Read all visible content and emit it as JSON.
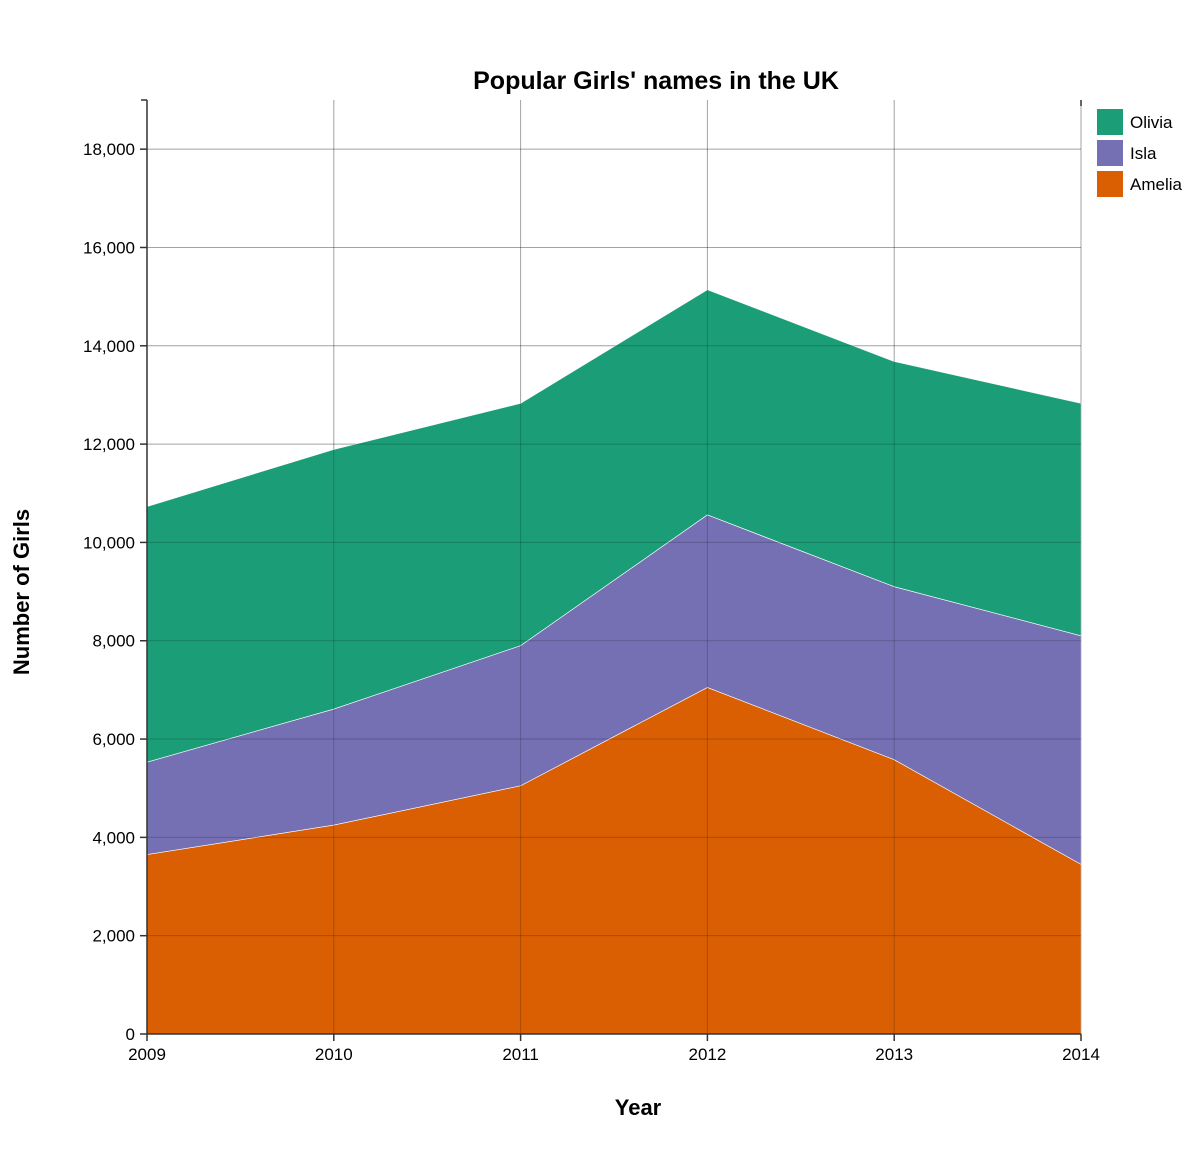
{
  "chart_data": {
    "type": "area",
    "stacked": true,
    "title": "Popular Girls' names in the UK",
    "xlabel": "Year",
    "ylabel": "Number of Girls",
    "x": [
      "2009",
      "2010",
      "2011",
      "2012",
      "2013",
      "2014"
    ],
    "xlim": [
      2009,
      2014
    ],
    "ylim": [
      0,
      19000
    ],
    "yticks": [
      0,
      2000,
      4000,
      6000,
      8000,
      10000,
      12000,
      14000,
      16000,
      18000
    ],
    "ytick_labels": [
      "0",
      "2,000",
      "4,000",
      "6,000",
      "8,000",
      "10,000",
      "12,000",
      "14,000",
      "16,000",
      "18,000"
    ],
    "grid": true,
    "legend_position": "top-right",
    "series": [
      {
        "name": "Amelia",
        "color": "#d95f02",
        "values": [
          3650,
          4250,
          5050,
          7050,
          5580,
          3450
        ]
      },
      {
        "name": "Isla",
        "color": "#7570b3",
        "values": [
          1880,
          2360,
          2850,
          3510,
          3520,
          4650
        ]
      },
      {
        "name": "Olivia",
        "color": "#1b9e77",
        "values": [
          5200,
          5280,
          4930,
          4580,
          4580,
          4730
        ]
      }
    ],
    "legend_order": [
      "Olivia",
      "Isla",
      "Amelia"
    ]
  }
}
